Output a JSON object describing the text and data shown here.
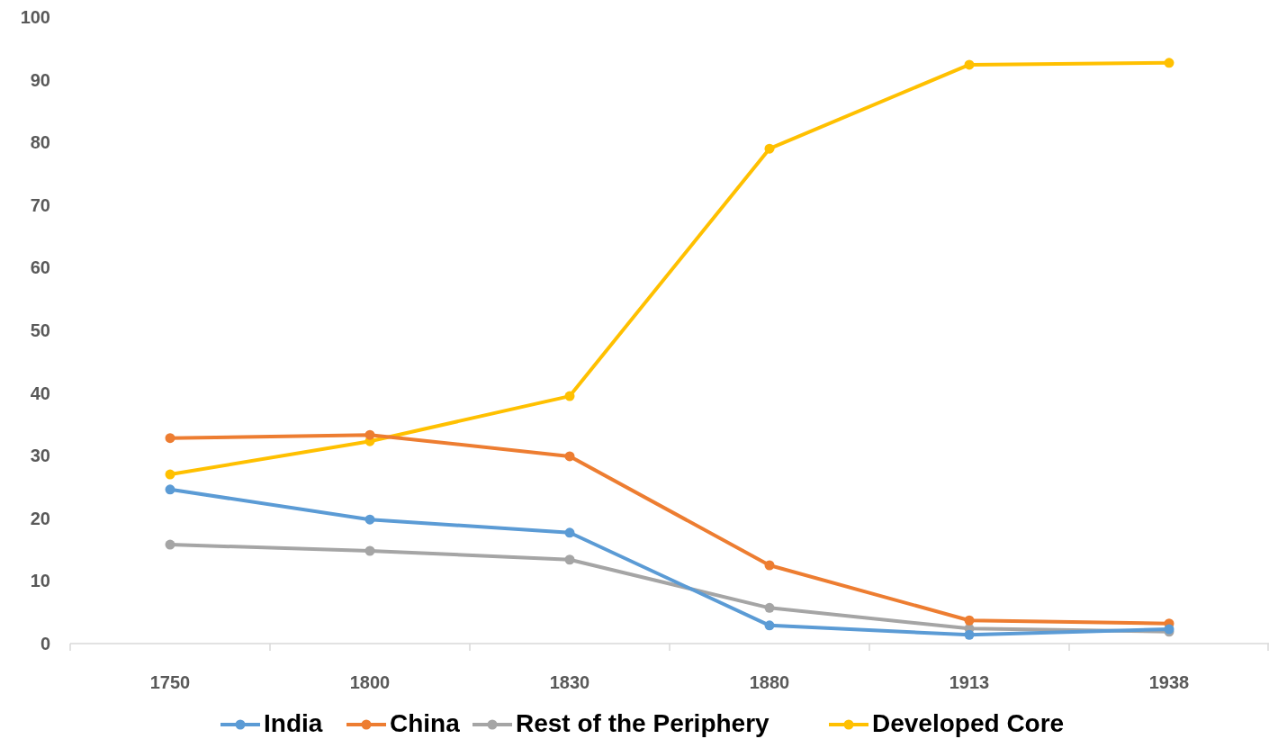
{
  "chart_data": {
    "type": "line",
    "categories": [
      "1750",
      "1800",
      "1830",
      "1880",
      "1913",
      "1938"
    ],
    "series": [
      {
        "name": "India",
        "color": "#5b9bd5",
        "values": [
          24.6,
          19.8,
          17.7,
          2.9,
          1.4,
          2.3
        ]
      },
      {
        "name": "China",
        "color": "#ed7d31",
        "values": [
          32.8,
          33.3,
          29.9,
          12.5,
          3.7,
          3.2
        ]
      },
      {
        "name": "Rest of the Periphery",
        "color": "#a5a5a5",
        "values": [
          15.8,
          14.8,
          13.4,
          5.7,
          2.4,
          1.9
        ]
      },
      {
        "name": "Developed Core",
        "color": "#ffc000",
        "values": [
          27.0,
          32.3,
          39.5,
          79.0,
          92.4,
          92.7
        ]
      }
    ],
    "ylim": [
      0,
      100
    ],
    "yticks": [
      0,
      10,
      20,
      30,
      40,
      50,
      60,
      70,
      80,
      90,
      100
    ],
    "grid": false,
    "legend": "bottom",
    "marker": "circle",
    "line_style": "solid"
  }
}
